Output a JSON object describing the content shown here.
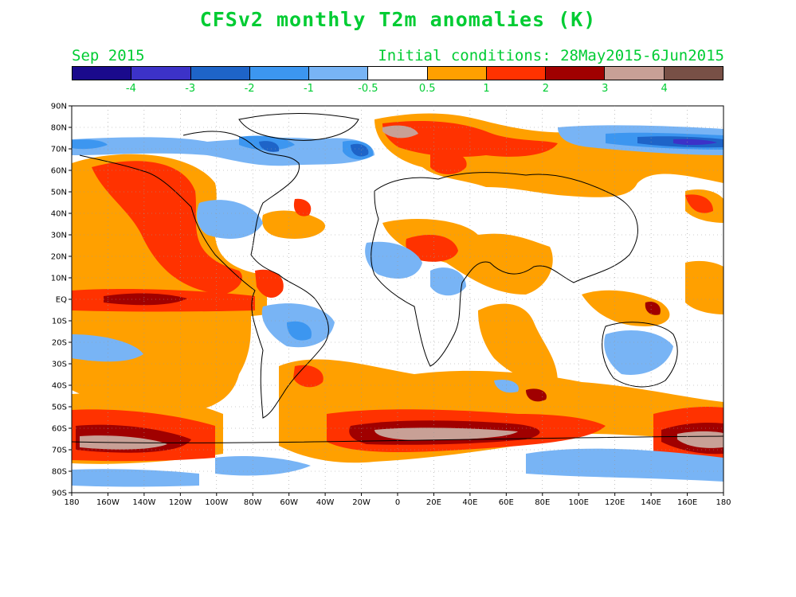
{
  "title": "CFSv2 monthly T2m anomalies (K)",
  "month_label": "Sep 2015",
  "init_label": "Initial conditions: 28May2015-6Jun2015",
  "legend": {
    "colors": [
      "#1a0a8c",
      "#3c32c8",
      "#1e64c8",
      "#3c96f0",
      "#78b4f5",
      "#ffffff",
      "#ffa000",
      "#ff3200",
      "#a00000",
      "#c8a096",
      "#785046"
    ],
    "labels": [
      "-4",
      "-3",
      "-2",
      "-1",
      "-0.5",
      "0.5",
      "1",
      "2",
      "3",
      "4"
    ]
  },
  "map": {
    "lon_labels": [
      "180",
      "160W",
      "140W",
      "120W",
      "100W",
      "80W",
      "60W",
      "40W",
      "20W",
      "0",
      "20E",
      "40E",
      "60E",
      "80E",
      "100E",
      "120E",
      "140E",
      "160E",
      "180"
    ],
    "lat_labels": [
      "90N",
      "80N",
      "70N",
      "60N",
      "50N",
      "40N",
      "30N",
      "20N",
      "10N",
      "EQ",
      "10S",
      "20S",
      "30S",
      "40S",
      "50S",
      "60S",
      "70S",
      "80S",
      "90S"
    ]
  }
}
